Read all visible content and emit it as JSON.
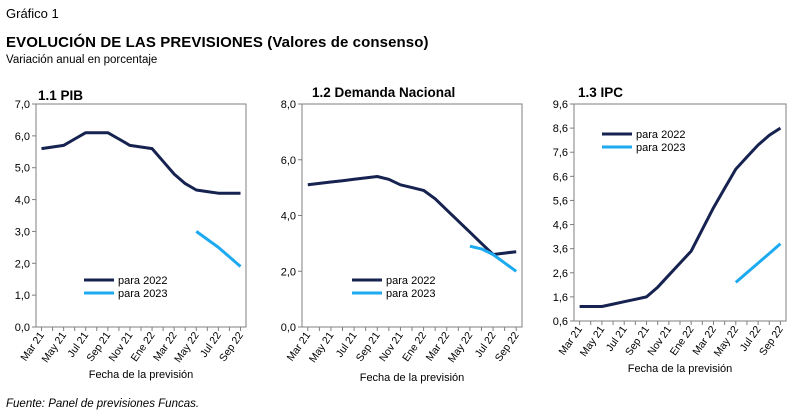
{
  "header": {
    "figure_label": "Gráfico 1",
    "title": "EVOLUCIÓN DE LAS PREVISIONES (Valores de consenso)",
    "subtitle": "Variación anual en porcentaje",
    "source": "Fuente: Panel de previsiones Funcas."
  },
  "colors": {
    "series_2022": "#16224f",
    "series_2023": "#1eaaf0"
  },
  "chart_data": [
    {
      "type": "line",
      "title": "1.1 PIB",
      "xlabel": "Fecha de la previsión",
      "ylabel": "",
      "ylim": [
        0,
        7
      ],
      "yticks": [
        "0,0",
        "1,0",
        "2,0",
        "3,0",
        "4,0",
        "5,0",
        "6,0",
        "7,0"
      ],
      "x": [
        "Mar 21",
        "Abr 21",
        "May 21",
        "Jun 21",
        "Jul 21",
        "Ago 21",
        "Sep 21",
        "Oct 21",
        "Nov 21",
        "Dic 21",
        "Ene 22",
        "Feb 22",
        "Mar 22",
        "Abr 22",
        "May 22",
        "Jun 22",
        "Jul 22",
        "Ago 22",
        "Sep 22"
      ],
      "xticks_shown": [
        "Mar 21",
        "May 21",
        "Jul 21",
        "Sep 21",
        "Nov 21",
        "Ene 22",
        "Mar 22",
        "May 22",
        "Jul 22",
        "Sep 22"
      ],
      "legend_position": "bottom-left",
      "series": [
        {
          "name": "para 2022",
          "values": [
            5.6,
            5.65,
            5.7,
            5.9,
            6.1,
            6.1,
            6.1,
            5.9,
            5.7,
            5.65,
            5.6,
            5.2,
            4.8,
            4.5,
            4.3,
            4.25,
            4.2,
            4.2,
            4.2
          ]
        },
        {
          "name": "para 2023",
          "values": [
            null,
            null,
            null,
            null,
            null,
            null,
            null,
            null,
            null,
            null,
            null,
            null,
            null,
            null,
            3.0,
            2.75,
            2.5,
            2.2,
            1.9
          ]
        }
      ]
    },
    {
      "type": "line",
      "title": "1.2 Demanda Nacional",
      "xlabel": "Fecha de la previsión",
      "ylabel": "",
      "ylim": [
        0,
        8
      ],
      "yticks": [
        "0,0",
        "2,0",
        "4,0",
        "6,0",
        "8,0"
      ],
      "x": [
        "Mar 21",
        "Abr 21",
        "May 21",
        "Jun 21",
        "Jul 21",
        "Ago 21",
        "Sep 21",
        "Oct 21",
        "Nov 21",
        "Dic 21",
        "Ene 22",
        "Feb 22",
        "Mar 22",
        "Abr 22",
        "May 22",
        "Jun 22",
        "Jul 22",
        "Ago 22",
        "Sep 22"
      ],
      "xticks_shown": [
        "Mar 21",
        "May 21",
        "Jul 21",
        "Sep 21",
        "Nov 21",
        "Ene 22",
        "Mar 22",
        "May 22",
        "Jul 22",
        "Sep 22"
      ],
      "legend_position": "bottom-left",
      "series": [
        {
          "name": "para 2022",
          "values": [
            5.1,
            5.15,
            5.2,
            5.25,
            5.3,
            5.35,
            5.4,
            5.3,
            5.1,
            5.0,
            4.9,
            4.6,
            4.2,
            3.8,
            3.4,
            3.0,
            2.6,
            2.65,
            2.7
          ]
        },
        {
          "name": "para 2023",
          "values": [
            null,
            null,
            null,
            null,
            null,
            null,
            null,
            null,
            null,
            null,
            null,
            null,
            null,
            null,
            2.9,
            2.8,
            2.6,
            2.3,
            2.0
          ]
        }
      ]
    },
    {
      "type": "line",
      "title": "1.3 IPC",
      "xlabel": "Fecha de la previsión",
      "ylabel": "",
      "ylim": [
        0.6,
        9.6
      ],
      "yticks": [
        "0,6",
        "1,6",
        "2,6",
        "3,6",
        "4,6",
        "5,6",
        "6,6",
        "7,6",
        "8,6",
        "9,6"
      ],
      "x": [
        "Mar 21",
        "Abr 21",
        "May 21",
        "Jun 21",
        "Jul 21",
        "Ago 21",
        "Sep 21",
        "Oct 21",
        "Nov 21",
        "Dic 21",
        "Ene 22",
        "Feb 22",
        "Mar 22",
        "Abr 22",
        "May 22",
        "Jun 22",
        "Jul 22",
        "Ago 22",
        "Sep 22"
      ],
      "xticks_shown": [
        "Mar 21",
        "May 21",
        "Jul 21",
        "Sep 21",
        "Nov 21",
        "Ene 22",
        "Mar 22",
        "May 22",
        "Jul 22",
        "Sep 22"
      ],
      "legend_position": "top-left",
      "series": [
        {
          "name": "para 2022",
          "values": [
            1.2,
            1.2,
            1.2,
            1.3,
            1.4,
            1.5,
            1.6,
            2.0,
            2.5,
            3.0,
            3.5,
            4.4,
            5.3,
            6.1,
            6.9,
            7.4,
            7.9,
            8.3,
            8.6
          ]
        },
        {
          "name": "para 2023",
          "values": [
            null,
            null,
            null,
            null,
            null,
            null,
            null,
            null,
            null,
            null,
            null,
            null,
            null,
            null,
            2.2,
            2.6,
            3.0,
            3.4,
            3.8
          ]
        }
      ]
    }
  ]
}
